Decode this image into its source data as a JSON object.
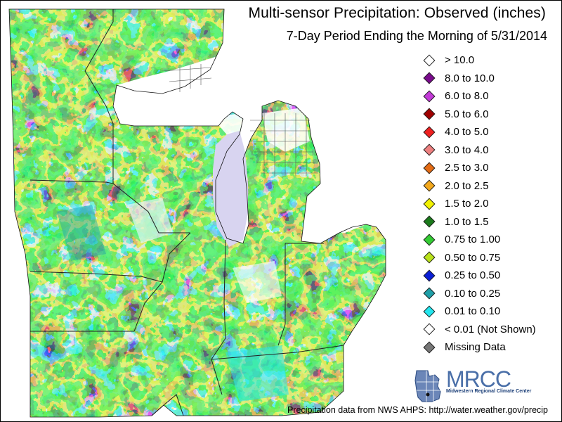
{
  "title": "Multi-sensor Precipitation:  Observed (inches)",
  "subtitle": "7-Day Period Ending the Morning of 5/31/2014",
  "legend": [
    {
      "label": "> 10.0",
      "color": "#ffffff"
    },
    {
      "label": "8.0 to 10.0",
      "color": "#7a0a8c"
    },
    {
      "label": "6.0 to 8.0",
      "color": "#c33ad8"
    },
    {
      "label": "5.0 to 6.0",
      "color": "#a00000"
    },
    {
      "label": "4.0 to 5.0",
      "color": "#ef1f1f"
    },
    {
      "label": "3.0 to 4.0",
      "color": "#ee8080"
    },
    {
      "label": "2.5 to 3.0",
      "color": "#e46b14"
    },
    {
      "label": "2.0 to 2.5",
      "color": "#f3a81c"
    },
    {
      "label": "1.5 to 2.0",
      "color": "#f2f200"
    },
    {
      "label": "1.0 to 1.5",
      "color": "#1b7a1b"
    },
    {
      "label": "0.75 to 1.00",
      "color": "#33cc33"
    },
    {
      "label": "0.50 to 0.75",
      "color": "#b9e21b"
    },
    {
      "label": "0.25 to 0.50",
      "color": "#0a1ed6"
    },
    {
      "label": "0.10 to 0.25",
      "color": "#1f9fa8"
    },
    {
      "label": "0.01 to 0.10",
      "color": "#22e6ee"
    },
    {
      "label": "< 0.01 (Not Shown)",
      "color": "#ffffff"
    },
    {
      "label": "Missing Data",
      "color": "#777777"
    }
  ],
  "logo": {
    "text": "MRCC",
    "subtitle": "Midwestern Regional Climate Center"
  },
  "credit": "Precipitation data from NWS AHPS: http://water.weather.gov/precip"
}
